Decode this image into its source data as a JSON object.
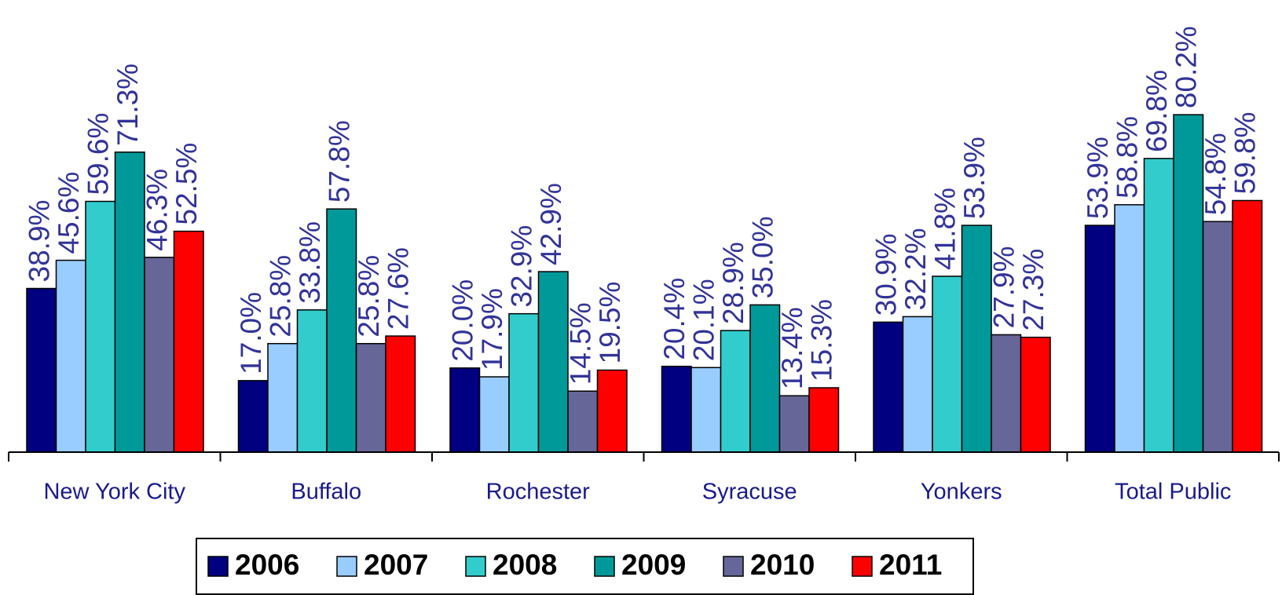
{
  "chart_data": {
    "type": "bar",
    "categories": [
      "New York City",
      "Buffalo",
      "Rochester",
      "Syracuse",
      "Yonkers",
      "Total Public"
    ],
    "series": [
      {
        "name": "2006",
        "color": "#000080",
        "values": [
          38.9,
          17.0,
          20.0,
          20.4,
          30.9,
          53.9
        ],
        "value_labels": [
          "38.9%",
          "17.0%",
          "20.0%",
          "20.4%",
          "30.9%",
          "53.9%"
        ]
      },
      {
        "name": "2007",
        "color": "#99ccff",
        "values": [
          45.6,
          25.8,
          17.9,
          20.1,
          32.2,
          58.8
        ],
        "value_labels": [
          "45.6%",
          "25.8%",
          "17.9%",
          "20.1%",
          "32.2%",
          "58.8%"
        ]
      },
      {
        "name": "2008",
        "color": "#33cccc",
        "values": [
          59.6,
          33.8,
          32.9,
          28.9,
          41.8,
          69.8
        ],
        "value_labels": [
          "59.6%",
          "33.8%",
          "32.9%",
          "28.9%",
          "41.8%",
          "69.8%"
        ]
      },
      {
        "name": "2009",
        "color": "#009999",
        "values": [
          71.3,
          57.8,
          42.9,
          35.0,
          53.9,
          80.2
        ],
        "value_labels": [
          "71.3%",
          "57.8%",
          "42.9%",
          "35.0%",
          "53.9%",
          "80.2%"
        ]
      },
      {
        "name": "2010",
        "color": "#666699",
        "values": [
          46.3,
          25.8,
          14.5,
          13.4,
          27.9,
          54.8
        ],
        "value_labels": [
          "46.3%",
          "25.8%",
          "14.5%",
          "13.4%",
          "27.9%",
          "54.8%"
        ]
      },
      {
        "name": "2011",
        "color": "#ff0000",
        "values": [
          52.5,
          27.6,
          19.5,
          15.3,
          27.3,
          59.8
        ],
        "value_labels": [
          "52.5%",
          "27.6%",
          "19.5%",
          "15.3%",
          "27.3%",
          "59.8%"
        ]
      }
    ],
    "legend": "bottom"
  }
}
